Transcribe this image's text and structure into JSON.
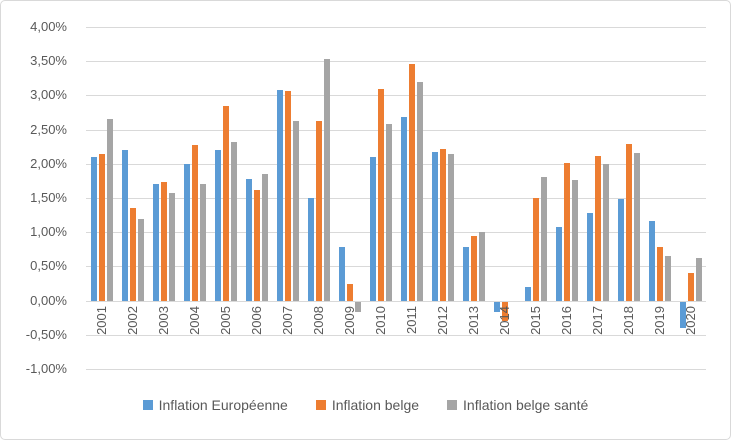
{
  "chart_data": {
    "type": "bar",
    "title": "",
    "xlabel": "",
    "ylabel": "",
    "ylim": [
      -1.0,
      4.0
    ],
    "ytick_step": 0.5,
    "grid": true,
    "legend_position": "bottom",
    "number_format": "french-percent",
    "yticks": [
      {
        "value": 4.0,
        "label": "4,00%"
      },
      {
        "value": 3.5,
        "label": "3,50%"
      },
      {
        "value": 3.0,
        "label": "3,00%"
      },
      {
        "value": 2.5,
        "label": "2,50%"
      },
      {
        "value": 2.0,
        "label": "2,00%"
      },
      {
        "value": 1.5,
        "label": "1,50%"
      },
      {
        "value": 1.0,
        "label": "1,00%"
      },
      {
        "value": 0.5,
        "label": "0,50%"
      },
      {
        "value": 0.0,
        "label": "0,00%"
      },
      {
        "value": -0.5,
        "label": "-0,50%"
      },
      {
        "value": -1.0,
        "label": "-1,00%"
      }
    ],
    "categories": [
      "2001",
      "2002",
      "2003",
      "2004",
      "2005",
      "2006",
      "2007",
      "2008",
      "2009",
      "2010",
      "2011",
      "2012",
      "2013",
      "2014",
      "2015",
      "2016",
      "2017",
      "2018",
      "2019",
      "2020"
    ],
    "series": [
      {
        "name": "Inflation Européenne",
        "color": "#5B9BD5",
        "values": [
          2.1,
          2.2,
          1.7,
          2.0,
          2.2,
          1.78,
          3.08,
          1.5,
          0.78,
          2.1,
          2.68,
          2.18,
          0.78,
          -0.15,
          0.2,
          1.08,
          1.28,
          1.48,
          1.17,
          -0.38
        ]
      },
      {
        "name": "Inflation belge",
        "color": "#ED7D31",
        "values": [
          2.15,
          1.35,
          1.73,
          2.27,
          2.85,
          1.62,
          3.06,
          2.62,
          0.25,
          3.09,
          3.46,
          2.22,
          0.95,
          -0.28,
          1.5,
          2.01,
          2.11,
          2.29,
          0.78,
          0.4
        ]
      },
      {
        "name": "Inflation belge santé",
        "color": "#A5A5A5",
        "values": [
          2.65,
          1.2,
          1.58,
          1.7,
          2.32,
          1.85,
          2.63,
          3.54,
          -0.15,
          2.58,
          3.2,
          2.15,
          1.0,
          0.0,
          1.81,
          1.76,
          2.0,
          2.16,
          0.65,
          0.63
        ]
      }
    ]
  },
  "colors": {
    "gridline": "#d9d9d9",
    "axis_text": "#595959",
    "frame_border": "#d9d9d9",
    "background": "#ffffff"
  }
}
